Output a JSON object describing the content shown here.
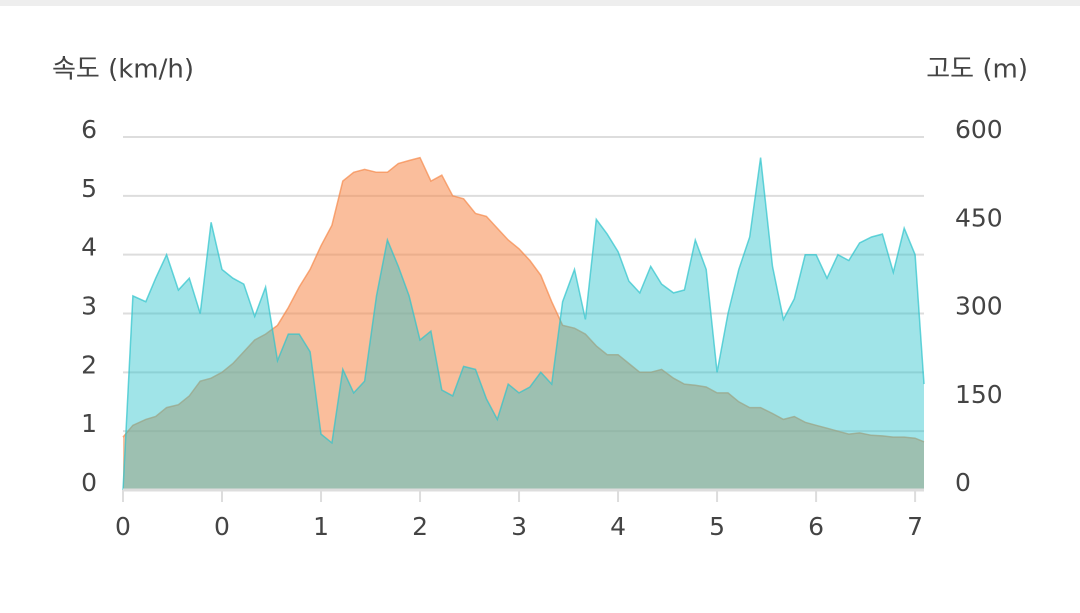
{
  "chart_data": {
    "type": "area",
    "y_label": "속도 (km/h)",
    "y2_label": "고도 (m)",
    "x": [
      0,
      0.1,
      0.23,
      0.33,
      0.44,
      0.56,
      0.67,
      0.78,
      0.89,
      1,
      1.11,
      1.22,
      1.33,
      1.44,
      1.56,
      1.67,
      1.78,
      1.89,
      2,
      2.11,
      2.22,
      2.33,
      2.44,
      2.56,
      2.67,
      2.78,
      2.89,
      3,
      3.11,
      3.22,
      3.33,
      3.44,
      3.56,
      3.67,
      3.78,
      3.89,
      4,
      4.11,
      4.22,
      4.33,
      4.44,
      4.56,
      4.67,
      4.78,
      4.89,
      5,
      5.11,
      5.22,
      5.33,
      5.44,
      5.56,
      5.67,
      5.78,
      5.89,
      6,
      6.11,
      6.22,
      6.33,
      6.44,
      6.56,
      6.67,
      6.78,
      6.89,
      7,
      7.11,
      7.22,
      7.33,
      7.44,
      7.56,
      7.67,
      7.78,
      7.89,
      8,
      8.09
    ],
    "xlim": [
      0,
      8.09
    ],
    "xticks": [
      0,
      {
        "value": 1,
        "label": "0"
      },
      {
        "value": 2,
        "label": "1"
      },
      {
        "value": 3,
        "label": "2"
      },
      {
        "value": 4,
        "label": "3"
      },
      {
        "value": 5,
        "label": "4"
      },
      {
        "value": 6,
        "label": "5"
      },
      {
        "value": 7,
        "label": "6"
      },
      {
        "value": 8,
        "label": "7"
      }
    ],
    "ylim": [
      0,
      6
    ],
    "yticks": [
      0,
      1,
      2,
      3,
      4,
      5,
      6
    ],
    "y2lim": [
      0,
      600
    ],
    "y2ticks": [
      0,
      150,
      300,
      450,
      600
    ],
    "grid": true,
    "series": [
      {
        "name": "고도",
        "axis": "y2",
        "color": "#f5894a",
        "values": [
          90,
          110,
          120,
          125,
          140,
          145,
          160,
          185,
          190,
          200,
          215,
          235,
          255,
          265,
          280,
          310,
          345,
          375,
          415,
          450,
          525,
          540,
          545,
          540,
          540,
          555,
          560,
          565,
          525,
          535,
          500,
          495,
          470,
          465,
          445,
          425,
          410,
          390,
          365,
          320,
          280,
          275,
          265,
          245,
          230,
          230,
          215,
          200,
          200,
          205,
          190,
          180,
          178,
          175,
          165,
          165,
          150,
          140,
          140,
          130,
          120,
          125,
          115,
          110,
          105,
          100,
          95,
          97,
          93,
          92,
          90,
          90,
          88,
          82
        ]
      },
      {
        "name": "속도",
        "color": "#2cc3cc",
        "values": [
          0,
          3.3,
          3.2,
          3.6,
          4.0,
          3.4,
          3.6,
          3.0,
          4.55,
          3.75,
          3.6,
          3.5,
          2.95,
          3.45,
          2.2,
          2.65,
          2.65,
          2.35,
          0.95,
          0.8,
          2.05,
          1.65,
          1.85,
          3.3,
          4.25,
          3.8,
          3.3,
          2.55,
          2.7,
          1.7,
          1.6,
          2.1,
          2.05,
          1.55,
          1.2,
          1.8,
          1.65,
          1.75,
          2.0,
          1.8,
          3.2,
          3.75,
          2.9,
          4.6,
          4.35,
          4.05,
          3.55,
          3.35,
          3.8,
          3.5,
          3.35,
          3.4,
          4.25,
          3.75,
          2.0,
          3.0,
          3.75,
          4.3,
          5.65,
          3.8,
          2.9,
          3.25,
          4.0,
          4.0,
          3.6,
          4.0,
          3.9,
          4.2,
          4.3,
          4.35,
          3.7,
          4.45,
          4.0,
          1.8
        ]
      }
    ]
  }
}
